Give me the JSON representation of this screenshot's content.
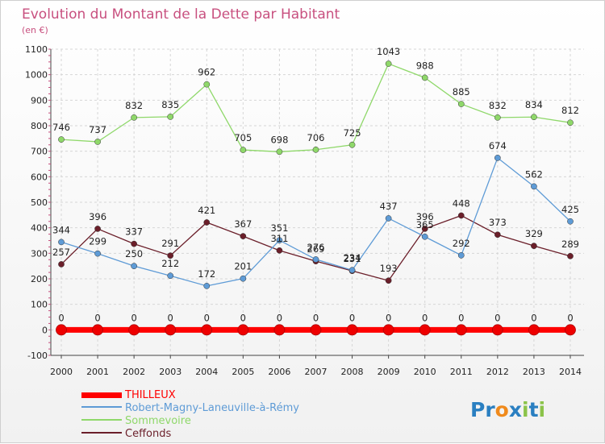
{
  "chart_data": {
    "type": "line",
    "title": "Evolution du Montant de la Dette par Habitant",
    "subtitle": "(en €)",
    "x": [
      "2000",
      "2001",
      "2002",
      "2003",
      "2004",
      "2005",
      "2006",
      "2007",
      "2008",
      "2009",
      "2010",
      "2011",
      "2012",
      "2013",
      "2014"
    ],
    "ylim": [
      -100,
      1100
    ],
    "yticks": [
      -100,
      0,
      100,
      200,
      300,
      400,
      500,
      600,
      700,
      800,
      900,
      1000,
      1100
    ],
    "grid": true,
    "legend_position": "bottom-left",
    "series": [
      {
        "name": "THILLEUX",
        "color": "#ff0000",
        "values": [
          0,
          0,
          0,
          0,
          0,
          0,
          0,
          0,
          0,
          0,
          0,
          0,
          0,
          0,
          0
        ]
      },
      {
        "name": "Robert-Magny-Laneuville-à-Rémy",
        "color": "#5e9bd6",
        "values": [
          344,
          299,
          250,
          212,
          172,
          201,
          351,
          276,
          234,
          437,
          365,
          292,
          674,
          562,
          425
        ]
      },
      {
        "name": "Sommevoire",
        "color": "#8fd86a",
        "values": [
          746,
          737,
          832,
          835,
          962,
          705,
          698,
          706,
          725,
          1043,
          988,
          885,
          832,
          834,
          812
        ]
      },
      {
        "name": "Ceffonds",
        "color": "#6b1f2a",
        "values": [
          257,
          396,
          337,
          291,
          421,
          367,
          311,
          269,
          231,
          193,
          396,
          448,
          373,
          329,
          289
        ]
      }
    ]
  },
  "logo": {
    "text": "Proxiti",
    "letters": [
      "P",
      "r",
      "o",
      "x",
      "i",
      "t",
      "i"
    ],
    "colors": [
      "#2a7fc1",
      "#2a7fc1",
      "#f08a1c",
      "#2a7fc1",
      "#8bc34a",
      "#2a7fc1",
      "#8bc34a"
    ]
  }
}
